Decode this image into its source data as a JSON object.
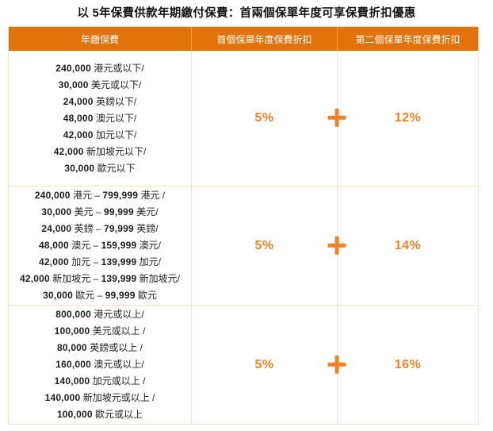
{
  "title": "以 5年保費供款年期繳付保費：首兩個保單年度可享保費折扣優惠",
  "colors": {
    "header_bg": "#E2720A",
    "accent": "#F08223",
    "border": "#F9E0C2",
    "header_text": "#FFFFFF",
    "body_text": "#1E1E1E"
  },
  "icons": {
    "plus": "+"
  },
  "table": {
    "headers": [
      "年繳保費",
      "首個保單年度保費折扣",
      "第二個保單年度保費折扣"
    ],
    "rows": [
      {
        "premium_lines": [
          "240,000 港元或以下/",
          "30,000 美元或以下/",
          "24,000 英鎊以下/",
          "48,000 澳元以下/",
          "42,000 加元以下/",
          "42,000 新加坡元以下/",
          "30,000 歐元以下"
        ],
        "first_year_discount": "5%",
        "second_year_discount": "12%"
      },
      {
        "premium_lines": [
          "240,000 港元 – 799,999 港元 /",
          "30,000 美元 – 99,999 美元/",
          "24,000 英鎊 – 79,999 英鎊/",
          "48,000 澳元 – 159,999 澳元/",
          "42,000 加元 – 139,999 加元/",
          "42,000 新加坡元 – 139,999 新加坡元/",
          "30,000 歐元 – 99,999 歐元"
        ],
        "first_year_discount": "5%",
        "second_year_discount": "14%"
      },
      {
        "premium_lines": [
          "800,000 港元或以上/",
          "100,000 美元或以上 /",
          "80,000 英鎊或以上 /",
          "160,000 澳元或以上/",
          "140,000 加元或以上 /",
          "140,000 新加坡元或以上 /",
          "100,000 歐元或以上"
        ],
        "first_year_discount": "5%",
        "second_year_discount": "16%"
      }
    ]
  }
}
